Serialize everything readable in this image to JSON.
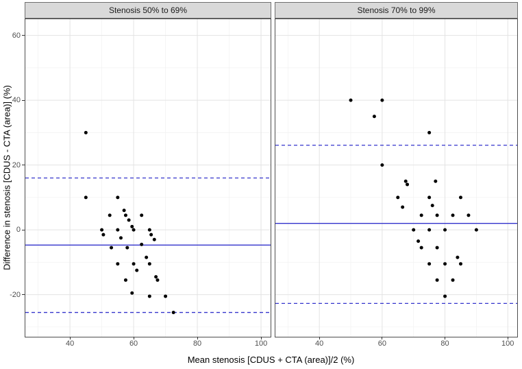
{
  "chart_data": {
    "type": "scatter",
    "title": "",
    "xlabel": "Mean stenosis [CDUS + CTA (area)]/2 (%)",
    "ylabel": "Difference in stenosis [CDUS - CTA (area)] (%)",
    "xlim": [
      26,
      103
    ],
    "ylim": [
      -33,
      65
    ],
    "x_ticks": [
      40,
      60,
      80,
      100
    ],
    "y_ticks": [
      60,
      40,
      20,
      0,
      -20
    ],
    "x_minor_ticks": [
      30,
      50,
      70,
      90
    ],
    "y_minor_ticks": [
      50,
      30,
      10,
      -10,
      -30
    ],
    "grid": true,
    "legend": "none",
    "point_style": "filled-black-dot",
    "facets": [
      {
        "title": "Stenosis 50% to 69%",
        "mean_diff": -4.7,
        "upper_loa": 16,
        "lower_loa": -25.5,
        "points": [
          [
            45,
            30
          ],
          [
            45,
            10
          ],
          [
            55,
            10
          ],
          [
            52.5,
            4.5
          ],
          [
            57,
            6
          ],
          [
            57.5,
            4.5
          ],
          [
            62.5,
            4.5
          ],
          [
            58.5,
            3
          ],
          [
            59.5,
            1
          ],
          [
            60,
            0
          ],
          [
            50,
            0
          ],
          [
            50.5,
            -1.5
          ],
          [
            55,
            0
          ],
          [
            56,
            -2.5
          ],
          [
            65,
            0
          ],
          [
            65.5,
            -1.5
          ],
          [
            66.5,
            -3
          ],
          [
            62.5,
            -4.5
          ],
          [
            53,
            -5.5
          ],
          [
            58,
            -5.5
          ],
          [
            64,
            -8.5
          ],
          [
            55,
            -10.5
          ],
          [
            60,
            -10.5
          ],
          [
            65,
            -10.5
          ],
          [
            61,
            -12.5
          ],
          [
            57.5,
            -15.5
          ],
          [
            67,
            -14.5
          ],
          [
            67.5,
            -15.5
          ],
          [
            59.5,
            -19.5
          ],
          [
            65,
            -20.5
          ],
          [
            70,
            -20.5
          ],
          [
            72.5,
            -25.5
          ]
        ]
      },
      {
        "title": "Stenosis 70% to 99%",
        "mean_diff": 2,
        "upper_loa": 26.1,
        "lower_loa": -22.7,
        "points": [
          [
            50,
            40
          ],
          [
            60,
            40
          ],
          [
            57.5,
            35
          ],
          [
            75,
            30
          ],
          [
            60,
            20
          ],
          [
            67.5,
            15
          ],
          [
            68,
            14
          ],
          [
            77,
            15
          ],
          [
            65,
            10
          ],
          [
            75,
            10
          ],
          [
            85,
            10
          ],
          [
            76,
            7.5
          ],
          [
            66.5,
            7
          ],
          [
            72.5,
            4.5
          ],
          [
            77.5,
            4.5
          ],
          [
            82.5,
            4.5
          ],
          [
            87.5,
            4.5
          ],
          [
            70,
            0
          ],
          [
            75,
            0
          ],
          [
            80,
            0
          ],
          [
            90,
            0
          ],
          [
            71.5,
            -3.5
          ],
          [
            72.5,
            -5.5
          ],
          [
            77.5,
            -5.5
          ],
          [
            84,
            -8.5
          ],
          [
            75,
            -10.5
          ],
          [
            80,
            -10.5
          ],
          [
            85,
            -10.5
          ],
          [
            77.5,
            -15.5
          ],
          [
            82.5,
            -15.5
          ],
          [
            80,
            -20.5
          ]
        ]
      }
    ],
    "colors": {
      "point": "#000000",
      "mean_line": "#3333cc",
      "loa_line": "#3333cc",
      "grid_major": "#e3e3e3",
      "grid_minor": "#f1f1f1",
      "panel_border": "#4d4d4d",
      "strip_bg": "#d9d9d9",
      "tick_label": "#4d4d4d",
      "axis_title": "#000000"
    }
  }
}
